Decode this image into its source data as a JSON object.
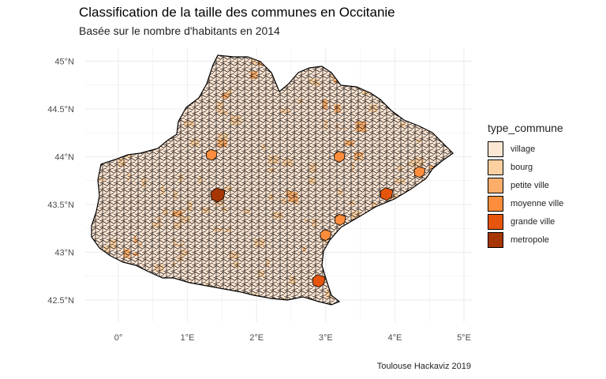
{
  "title": "Classification de la taille des communes en Occitanie",
  "subtitle": "Basée sur le nombre d'habitants en 2014",
  "caption": "Toulouse Hackaviz 2019",
  "chart_data": {
    "type": "choropleth",
    "x_axis": {
      "ticks": [
        "0°",
        "1°E",
        "2°E",
        "3°E",
        "4°E",
        "5°E"
      ],
      "values": [
        0,
        1,
        2,
        3,
        4,
        5
      ]
    },
    "y_axis": {
      "ticks": [
        "42.5°N",
        "43°N",
        "43.5°N",
        "44°N",
        "44.5°N",
        "45°N"
      ],
      "values": [
        42.5,
        43,
        43.5,
        44,
        44.5,
        45
      ]
    },
    "grid": true,
    "legend": {
      "title": "type_commune",
      "placement": "right",
      "entries": [
        {
          "label": "village",
          "color": "#fee6d4"
        },
        {
          "label": "bourg",
          "color": "#fdd0a2"
        },
        {
          "label": "petite ville",
          "color": "#fdae6b"
        },
        {
          "label": "moyenne ville",
          "color": "#fd8d3c"
        },
        {
          "label": "grande ville",
          "color": "#e6550d"
        },
        {
          "label": "metropole",
          "color": "#a63603"
        }
      ]
    },
    "notable_communes": [
      {
        "class": "metropole",
        "lon": 1.44,
        "lat": 43.6
      },
      {
        "class": "grande ville",
        "lon": 3.88,
        "lat": 43.61
      },
      {
        "class": "grande ville",
        "lon": 2.9,
        "lat": 42.7
      },
      {
        "class": "moyenne ville",
        "lon": 4.36,
        "lat": 43.84
      },
      {
        "class": "moyenne ville",
        "lon": 3.21,
        "lat": 43.34
      },
      {
        "class": "moyenne ville",
        "lon": 3.0,
        "lat": 43.18
      },
      {
        "class": "moyenne ville",
        "lon": 1.35,
        "lat": 44.02
      },
      {
        "class": "moyenne ville",
        "lon": 3.2,
        "lat": 44.0
      }
    ]
  }
}
